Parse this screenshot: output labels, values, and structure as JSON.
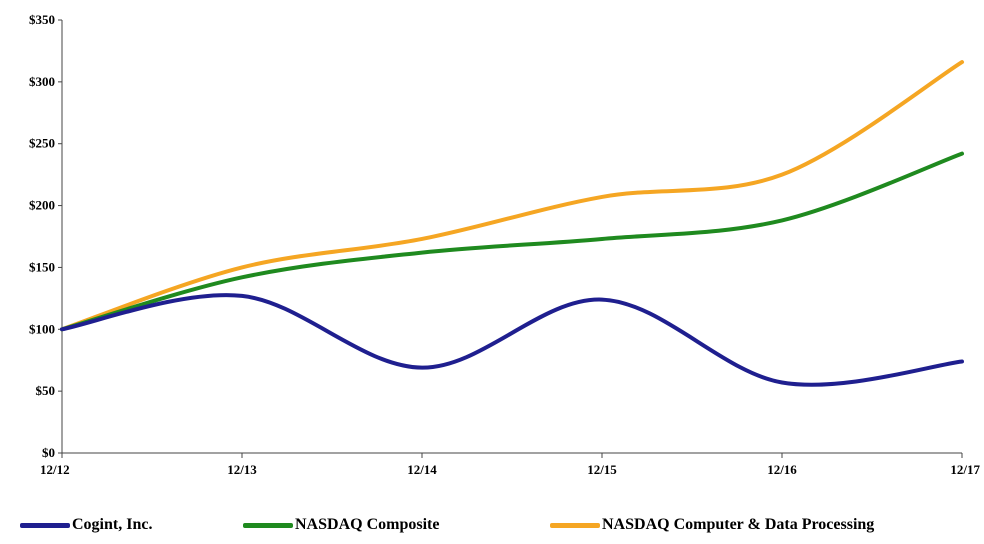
{
  "chart_data": {
    "type": "line",
    "x": [
      "12/12",
      "12/13",
      "12/14",
      "12/15",
      "12/16",
      "12/17"
    ],
    "y_ticks": [
      "$0",
      "$50",
      "$100",
      "$150",
      "$200",
      "$250",
      "$300",
      "$350"
    ],
    "ylim": [
      0,
      350
    ],
    "grid": false,
    "legend_position": "bottom",
    "series": [
      {
        "name": "Cogint, Inc.",
        "color": "#1f1f8f",
        "values": [
          100,
          127,
          69,
          124,
          57,
          74
        ]
      },
      {
        "name": "NASDAQ Composite",
        "color": "#1f8a1f",
        "values": [
          100,
          142,
          162,
          173,
          188,
          242
        ]
      },
      {
        "name": "NASDAQ Computer & Data Processing",
        "color": "#f5a623",
        "values": [
          100,
          150,
          173,
          207,
          225,
          316
        ]
      }
    ]
  }
}
